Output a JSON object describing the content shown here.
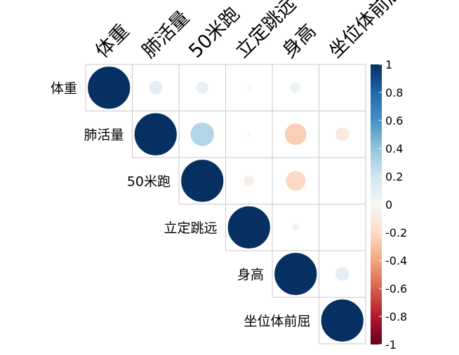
{
  "chart_data": {
    "type": "heatmap",
    "style": "correlation-plot-circles-upper-triangle",
    "variables": [
      "体重",
      "肺活量",
      "50米跑",
      "立定跳远",
      "身高",
      "坐位体前屈"
    ],
    "matrix": [
      [
        1.0,
        0.1,
        0.08,
        0.01,
        0.06,
        0.0
      ],
      [
        0.1,
        1.0,
        0.3,
        0.01,
        -0.25,
        -0.1
      ],
      [
        0.08,
        0.3,
        1.0,
        -0.06,
        -0.21,
        0.0
      ],
      [
        0.01,
        0.01,
        -0.06,
        1.0,
        0.03,
        0.0
      ],
      [
        0.06,
        -0.25,
        -0.21,
        0.03,
        1.0,
        0.1
      ],
      [
        0.0,
        -0.1,
        0.0,
        0.0,
        0.1,
        1.0
      ]
    ],
    "colorbar": {
      "min": -1,
      "max": 1,
      "tick_labels": [
        "1",
        "0.8",
        "0.6",
        "0.4",
        "0.2",
        "0",
        "-0.2",
        "-0.4",
        "-0.6",
        "-0.8",
        "-1"
      ],
      "tick_values": [
        1,
        0.8,
        0.6,
        0.4,
        0.2,
        0,
        -0.2,
        -0.4,
        -0.6,
        -0.8,
        -1
      ],
      "colors_high_to_low": [
        "#053061",
        "#2166ac",
        "#4393c3",
        "#92c5de",
        "#d1e5f0",
        "#f7f7f7",
        "#fddbc7",
        "#f4a582",
        "#d6604d",
        "#b2182b",
        "#67001f"
      ]
    },
    "grid": true,
    "legend_placement": "right"
  }
}
